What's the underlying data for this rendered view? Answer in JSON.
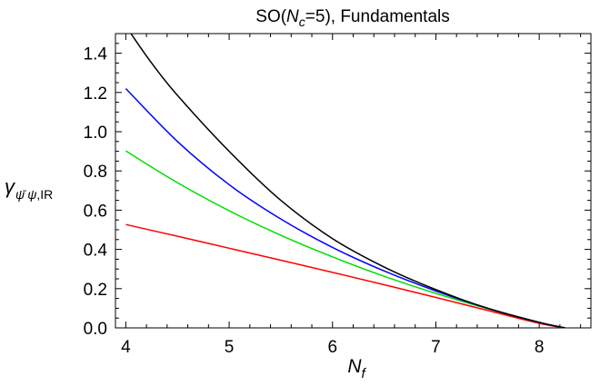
{
  "chart_data": {
    "type": "line",
    "title_parts": {
      "prefix": "SO(",
      "var": "N",
      "sub": "c",
      "suffix": "=5), Fundamentals"
    },
    "xlabel_parts": {
      "var": "N",
      "sub": "f"
    },
    "ylabel_parts": {
      "gamma": "γ",
      "sub_psibar": "ψ̄",
      "sub_psi": "ψ",
      "sub_ir": ",IR"
    },
    "xlim": [
      3.9,
      8.5
    ],
    "ylim": [
      0.0,
      1.5
    ],
    "xticks": [
      4,
      5,
      6,
      7,
      8
    ],
    "xtick_labels": [
      "4",
      "5",
      "6",
      "7",
      "8"
    ],
    "yticks": [
      0.0,
      0.2,
      0.4,
      0.6,
      0.8,
      1.0,
      1.2,
      1.4
    ],
    "ytick_labels": [
      "0.0",
      "0.2",
      "0.4",
      "0.6",
      "0.8",
      "1.0",
      "1.2",
      "1.4"
    ],
    "grid": false,
    "legend": "none",
    "series": [
      {
        "color": "#ff0000",
        "x": [
          4.0,
          4.5,
          5.0,
          5.5,
          6.0,
          6.5,
          7.0,
          7.5,
          8.0,
          8.25
        ],
        "y": [
          0.527,
          0.467,
          0.406,
          0.345,
          0.283,
          0.22,
          0.155,
          0.089,
          0.023,
          0.0
        ]
      },
      {
        "color": "#00dd00",
        "x": [
          4.0,
          4.5,
          5.0,
          5.5,
          6.0,
          6.5,
          7.0,
          7.5,
          8.0,
          8.25
        ],
        "y": [
          0.902,
          0.74,
          0.597,
          0.472,
          0.362,
          0.263,
          0.176,
          0.098,
          0.028,
          0.0
        ]
      },
      {
        "color": "#0000ff",
        "x": [
          4.0,
          4.5,
          5.0,
          5.5,
          6.0,
          6.5,
          7.0,
          7.5,
          8.0,
          8.25
        ],
        "y": [
          1.22,
          0.95,
          0.73,
          0.555,
          0.41,
          0.29,
          0.188,
          0.1,
          0.028,
          0.0
        ]
      },
      {
        "color": "#000000",
        "x": [
          4.05,
          4.25,
          4.5,
          5.0,
          5.5,
          6.0,
          6.5,
          7.0,
          7.5,
          8.0,
          8.25
        ],
        "y": [
          1.5,
          1.35,
          1.185,
          0.9,
          0.65,
          0.455,
          0.31,
          0.195,
          0.1,
          0.028,
          0.0
        ]
      }
    ]
  }
}
